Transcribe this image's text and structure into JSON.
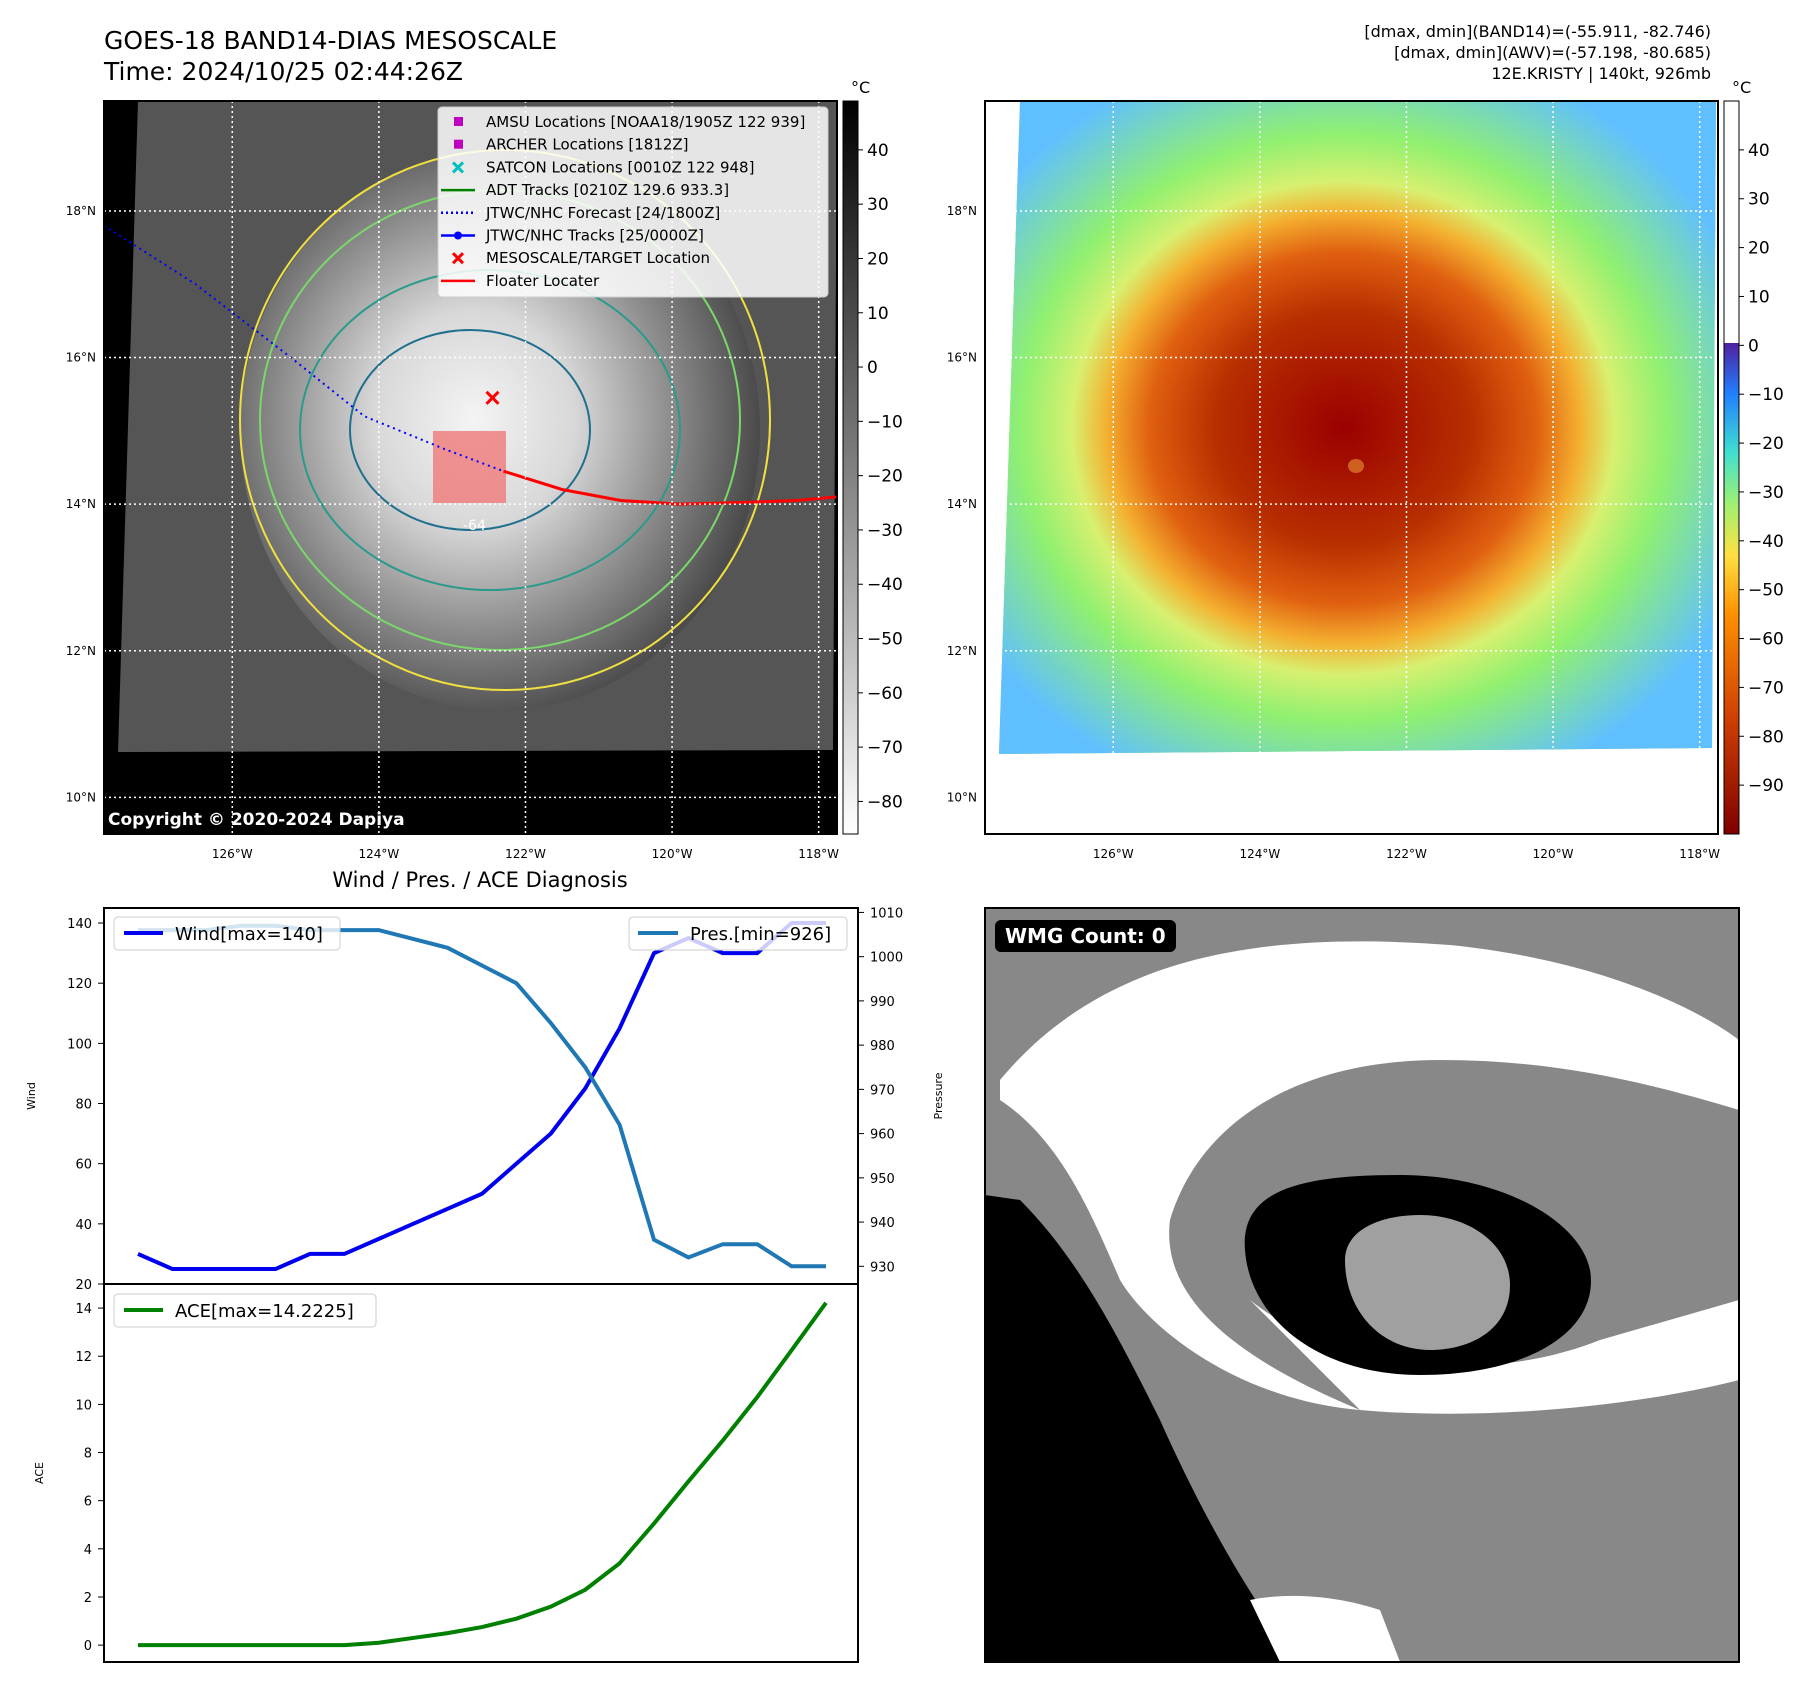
{
  "header": {
    "title_line1": "GOES-18 BAND14-DIAS MESOSCALE",
    "title_line2": "Time: 2024/10/25 02:44:26Z",
    "info_line1": "[dmax, dmin](BAND14)=(-55.911, -82.746)",
    "info_line2": "[dmax, dmin](AWV)=(-57.198, -80.685)",
    "info_line3": "12E.KRISTY | 140kt, 926mb"
  },
  "maps": {
    "lat_labels": [
      "18°N",
      "16°N",
      "14°N",
      "12°N",
      "10°N"
    ],
    "lat_values": [
      18,
      16,
      14,
      12,
      10
    ],
    "lon_labels": [
      "126°W",
      "124°W",
      "122°W",
      "120°W",
      "118°W"
    ],
    "lon_values": [
      -126,
      -124,
      -122,
      -120,
      -118
    ],
    "lon_range": [
      -127.75,
      -117.75
    ],
    "lat_range": [
      9.5,
      19.5
    ],
    "copyright": "Copyright © 2020-2024 Dapiya",
    "contour_label": "-64"
  },
  "colorbar_left": {
    "unit": "°C",
    "ticks": [
      "40",
      "30",
      "20",
      "10",
      "0",
      "−10",
      "−20",
      "−30",
      "−40",
      "−50",
      "−60",
      "−70",
      "−80"
    ],
    "tick_values": [
      40,
      30,
      20,
      10,
      0,
      -10,
      -20,
      -30,
      -40,
      -50,
      -60,
      -70,
      -80
    ],
    "range": [
      -86,
      49
    ]
  },
  "colorbar_right": {
    "unit": "°C",
    "ticks": [
      "40",
      "30",
      "20",
      "10",
      "0",
      "−10",
      "−20",
      "−30",
      "−40",
      "−50",
      "−60",
      "−70",
      "−80",
      "−90"
    ],
    "tick_values": [
      40,
      30,
      20,
      10,
      0,
      -10,
      -20,
      -30,
      -40,
      -50,
      -60,
      -70,
      -80,
      -90
    ],
    "range": [
      -100,
      50
    ]
  },
  "legend_map": {
    "items": [
      {
        "label": "AMSU Locations [NOAA18/1905Z 122 939]",
        "marker": "square",
        "color": "#c000c0"
      },
      {
        "label": "ARCHER Locations [1812Z]",
        "marker": "square",
        "color": "#c000c0"
      },
      {
        "label": "SATCON Locations [0010Z 122 948]",
        "marker": "x",
        "color": "#00c0c0"
      },
      {
        "label": "ADT Tracks [0210Z 129.6 933.3]",
        "marker": "line",
        "color": "#008000"
      },
      {
        "label": "JTWC/NHC Forecast [24/1800Z]",
        "marker": "dotted",
        "color": "#0000ff"
      },
      {
        "label": "JTWC/NHC Tracks [25/0000Z]",
        "marker": "line-dot",
        "color": "#0000ff"
      },
      {
        "label": "MESOSCALE/TARGET Location",
        "marker": "x",
        "color": "#ff0000"
      },
      {
        "label": "Floater Locater",
        "marker": "line",
        "color": "#ff0000"
      }
    ]
  },
  "track_data": {
    "forecast": {
      "lon": [
        -127.75,
        -126.5,
        -125.2,
        -124.2,
        -123.1,
        -122.3
      ],
      "lat": [
        17.8,
        17.0,
        16.0,
        15.2,
        14.75,
        14.45
      ]
    },
    "best_track": {
      "lon": [
        -122.3,
        -121.5,
        -120.7,
        -119.9,
        -119.1,
        -118.3,
        -117.75
      ],
      "lat": [
        14.45,
        14.2,
        14.05,
        14.0,
        14.02,
        14.05,
        14.1
      ]
    },
    "target": {
      "lon": -122.45,
      "lat": 15.45
    }
  },
  "chart_data": [
    {
      "type": "line",
      "title": "Wind / Pres. / ACE Diagnosis",
      "ylabel": "Wind",
      "y2label": "Pressure",
      "ylim": [
        20,
        145
      ],
      "y2lim": [
        926,
        1011
      ],
      "yticks": [
        "140",
        "120",
        "100",
        "80",
        "60",
        "40",
        "20"
      ],
      "ytick_values": [
        140,
        120,
        100,
        80,
        60,
        40,
        20
      ],
      "y2ticks": [
        "1010",
        "1000",
        "990",
        "980",
        "970",
        "960",
        "950",
        "940",
        "930"
      ],
      "y2tick_values": [
        1010,
        1000,
        990,
        980,
        970,
        960,
        950,
        940,
        930
      ],
      "x": [
        0,
        1,
        2,
        3,
        4,
        5,
        6,
        7,
        8,
        9,
        10,
        11,
        12,
        13,
        14,
        15,
        16,
        17,
        18,
        19,
        20
      ],
      "series": [
        {
          "name": "Wind[max=140]",
          "axis": "left",
          "color": "#0000ee",
          "values": [
            30,
            25,
            25,
            25,
            25,
            30,
            30,
            35,
            40,
            45,
            50,
            60,
            70,
            85,
            105,
            130,
            135,
            130,
            130,
            140,
            140
          ]
        },
        {
          "name": "Pres.[min=926]",
          "axis": "right",
          "color": "#1f77b4",
          "values": [
            1006,
            1006,
            1006,
            1007,
            1007,
            1006,
            1006,
            1006,
            1004,
            1002,
            998,
            994,
            985,
            975,
            962,
            936,
            932,
            935,
            935,
            930,
            930
          ]
        }
      ]
    },
    {
      "type": "line",
      "ylabel": "ACE",
      "ylim": [
        -0.7,
        15
      ],
      "yticks": [
        "14",
        "12",
        "10",
        "8",
        "6",
        "4",
        "2",
        "0"
      ],
      "ytick_values": [
        14,
        12,
        10,
        8,
        6,
        4,
        2,
        0
      ],
      "x": [
        0,
        1,
        2,
        3,
        4,
        5,
        6,
        7,
        8,
        9,
        10,
        11,
        12,
        13,
        14,
        15,
        16,
        17,
        18,
        19,
        20
      ],
      "series": [
        {
          "name": "ACE[max=14.2225]",
          "color": "#008000",
          "values": [
            0,
            0,
            0,
            0,
            0,
            0,
            0,
            0.1,
            0.3,
            0.5,
            0.75,
            1.1,
            1.6,
            2.3,
            3.4,
            5.05,
            6.8,
            8.5,
            10.3,
            12.25,
            14.22
          ]
        }
      ]
    }
  ],
  "wmg": {
    "label": "WMG Count: 0"
  }
}
